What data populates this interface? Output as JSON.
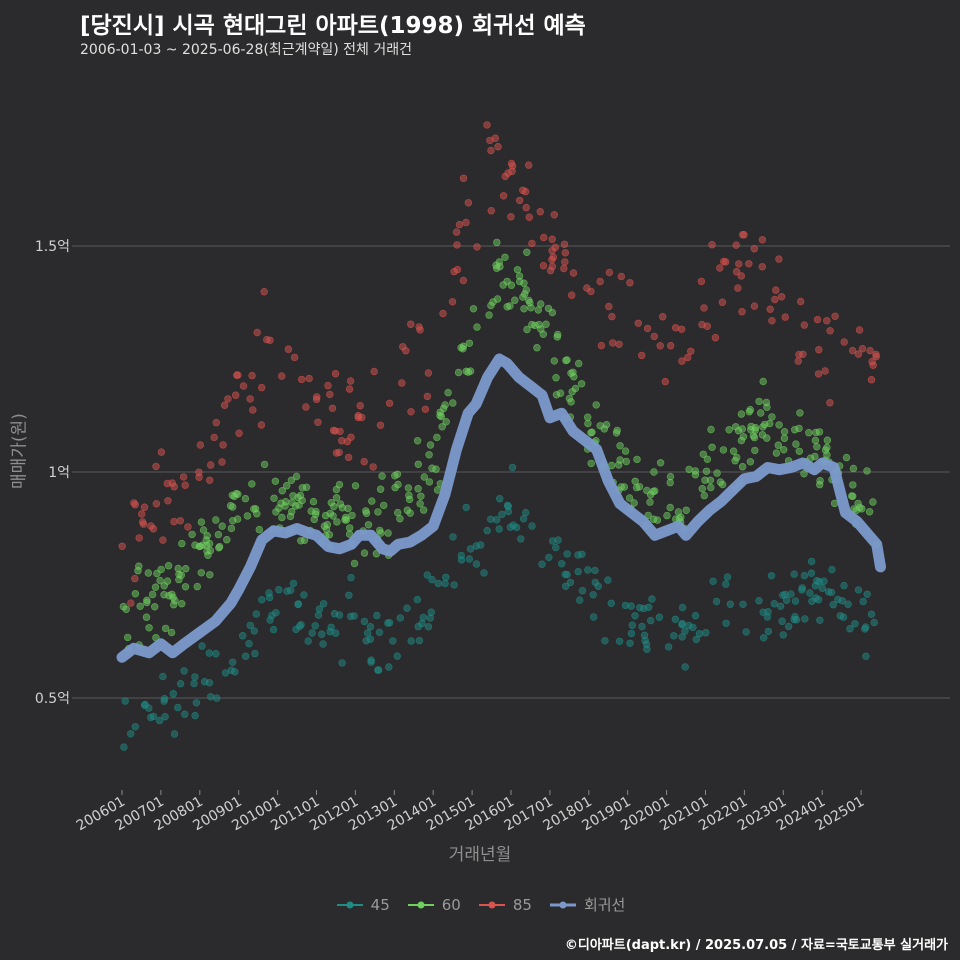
{
  "chart_data": {
    "type": "scatter",
    "title": "[당진시] 시곡 현대그린 아파트(1998) 회귀선 예측",
    "subtitle": "2006-01-03 ~ 2025-06-28(최근계약일) 전체 거래건",
    "xlabel": "거래년월",
    "ylabel": "매매가(원)",
    "x_ticks": [
      "200601",
      "200701",
      "200801",
      "200901",
      "201001",
      "201101",
      "201201",
      "201301",
      "201401",
      "201501",
      "201601",
      "201701",
      "201801",
      "201901",
      "202001",
      "202101",
      "202201",
      "202301",
      "202401",
      "202501"
    ],
    "y_ticks": [
      {
        "value": 0.5,
        "label": "0.5억"
      },
      {
        "value": 1.0,
        "label": "1억"
      },
      {
        "value": 1.5,
        "label": "1.5억"
      }
    ],
    "ylim": [
      0.3,
      1.9
    ],
    "xlim": [
      2005.7,
      2025.8
    ],
    "grid": "horizontal",
    "legend_position": "bottom",
    "series": [
      {
        "name": "45",
        "color": "#1f8c86",
        "band": [
          [
            2006.0,
            0.42
          ],
          [
            2006.5,
            0.44
          ],
          [
            2007.0,
            0.46
          ],
          [
            2007.5,
            0.49
          ],
          [
            2008.0,
            0.53
          ],
          [
            2008.5,
            0.56
          ],
          [
            2009.0,
            0.62
          ],
          [
            2009.5,
            0.67
          ],
          [
            2010.0,
            0.7
          ],
          [
            2010.5,
            0.7
          ],
          [
            2011.0,
            0.68
          ],
          [
            2011.5,
            0.66
          ],
          [
            2012.0,
            0.66
          ],
          [
            2012.5,
            0.65
          ],
          [
            2013.0,
            0.64
          ],
          [
            2013.5,
            0.66
          ],
          [
            2014.0,
            0.7
          ],
          [
            2014.5,
            0.78
          ],
          [
            2015.0,
            0.84
          ],
          [
            2015.5,
            0.9
          ],
          [
            2016.0,
            0.92
          ],
          [
            2016.5,
            0.9
          ],
          [
            2017.0,
            0.86
          ],
          [
            2017.5,
            0.8
          ],
          [
            2018.0,
            0.76
          ],
          [
            2018.5,
            0.72
          ],
          [
            2019.0,
            0.68
          ],
          [
            2019.5,
            0.66
          ],
          [
            2020.0,
            0.64
          ],
          [
            2020.5,
            0.65
          ],
          [
            2021.0,
            0.68
          ],
          [
            2021.5,
            0.7
          ],
          [
            2022.0,
            0.72
          ],
          [
            2022.5,
            0.72
          ],
          [
            2023.0,
            0.72
          ],
          [
            2023.5,
            0.73
          ],
          [
            2024.0,
            0.73
          ],
          [
            2024.5,
            0.7
          ],
          [
            2025.0,
            0.68
          ],
          [
            2025.4,
            0.66
          ]
        ]
      },
      {
        "name": "60",
        "color": "#6fcf5f",
        "band": [
          [
            2006.0,
            0.64
          ],
          [
            2006.5,
            0.68
          ],
          [
            2007.0,
            0.72
          ],
          [
            2007.5,
            0.77
          ],
          [
            2008.0,
            0.82
          ],
          [
            2008.5,
            0.88
          ],
          [
            2009.0,
            0.92
          ],
          [
            2009.5,
            0.95
          ],
          [
            2010.0,
            0.94
          ],
          [
            2010.5,
            0.92
          ],
          [
            2011.0,
            0.9
          ],
          [
            2011.5,
            0.89
          ],
          [
            2012.0,
            0.9
          ],
          [
            2012.5,
            0.9
          ],
          [
            2013.0,
            0.92
          ],
          [
            2013.5,
            0.96
          ],
          [
            2014.0,
            1.02
          ],
          [
            2014.5,
            1.15
          ],
          [
            2015.0,
            1.3
          ],
          [
            2015.5,
            1.4
          ],
          [
            2016.0,
            1.44
          ],
          [
            2016.5,
            1.38
          ],
          [
            2017.0,
            1.28
          ],
          [
            2017.5,
            1.18
          ],
          [
            2018.0,
            1.1
          ],
          [
            2018.5,
            1.04
          ],
          [
            2019.0,
            0.98
          ],
          [
            2019.5,
            0.94
          ],
          [
            2020.0,
            0.92
          ],
          [
            2020.5,
            0.94
          ],
          [
            2021.0,
            0.98
          ],
          [
            2021.5,
            1.02
          ],
          [
            2022.0,
            1.08
          ],
          [
            2022.5,
            1.1
          ],
          [
            2023.0,
            1.08
          ],
          [
            2023.5,
            1.06
          ],
          [
            2024.0,
            1.04
          ],
          [
            2024.5,
            0.98
          ],
          [
            2025.0,
            0.92
          ],
          [
            2025.4,
            0.88
          ]
        ]
      },
      {
        "name": "85",
        "color": "#d9534f",
        "band": [
          [
            2006.0,
            0.82
          ],
          [
            2006.5,
            0.86
          ],
          [
            2007.0,
            0.9
          ],
          [
            2007.5,
            0.95
          ],
          [
            2008.0,
            1.0
          ],
          [
            2008.5,
            1.08
          ],
          [
            2009.0,
            1.15
          ],
          [
            2009.5,
            1.22
          ],
          [
            2010.0,
            1.26
          ],
          [
            2010.5,
            1.24
          ],
          [
            2011.0,
            1.18
          ],
          [
            2011.5,
            1.12
          ],
          [
            2012.0,
            1.1
          ],
          [
            2012.5,
            1.12
          ],
          [
            2013.0,
            1.18
          ],
          [
            2013.5,
            1.26
          ],
          [
            2014.0,
            1.32
          ],
          [
            2014.5,
            1.44
          ],
          [
            2015.0,
            1.6
          ],
          [
            2015.5,
            1.7
          ],
          [
            2016.0,
            1.66
          ],
          [
            2016.5,
            1.56
          ],
          [
            2017.0,
            1.48
          ],
          [
            2017.5,
            1.42
          ],
          [
            2018.0,
            1.38
          ],
          [
            2018.5,
            1.34
          ],
          [
            2019.0,
            1.3
          ],
          [
            2019.5,
            1.26
          ],
          [
            2020.0,
            1.24
          ],
          [
            2020.5,
            1.28
          ],
          [
            2021.0,
            1.34
          ],
          [
            2021.5,
            1.4
          ],
          [
            2022.0,
            1.44
          ],
          [
            2022.5,
            1.42
          ],
          [
            2023.0,
            1.36
          ],
          [
            2023.5,
            1.3
          ],
          [
            2024.0,
            1.28
          ],
          [
            2024.5,
            1.26
          ],
          [
            2025.0,
            1.24
          ],
          [
            2025.4,
            1.2
          ]
        ]
      },
      {
        "name": "회귀선",
        "color": "#7b9acc",
        "type": "line",
        "points": [
          [
            2006.0,
            0.59
          ],
          [
            2006.3,
            0.61
          ],
          [
            2006.7,
            0.6
          ],
          [
            2007.0,
            0.62
          ],
          [
            2007.3,
            0.6
          ],
          [
            2007.6,
            0.62
          ],
          [
            2008.0,
            0.645
          ],
          [
            2008.4,
            0.67
          ],
          [
            2008.8,
            0.71
          ],
          [
            2009.0,
            0.74
          ],
          [
            2009.3,
            0.79
          ],
          [
            2009.6,
            0.85
          ],
          [
            2009.9,
            0.87
          ],
          [
            2010.2,
            0.865
          ],
          [
            2010.5,
            0.875
          ],
          [
            2010.8,
            0.865
          ],
          [
            2011.0,
            0.86
          ],
          [
            2011.3,
            0.835
          ],
          [
            2011.6,
            0.83
          ],
          [
            2011.9,
            0.84
          ],
          [
            2012.1,
            0.86
          ],
          [
            2012.4,
            0.86
          ],
          [
            2012.7,
            0.83
          ],
          [
            2012.9,
            0.825
          ],
          [
            2013.1,
            0.84
          ],
          [
            2013.4,
            0.845
          ],
          [
            2013.7,
            0.86
          ],
          [
            2014.0,
            0.88
          ],
          [
            2014.3,
            0.95
          ],
          [
            2014.6,
            1.05
          ],
          [
            2014.9,
            1.13
          ],
          [
            2015.1,
            1.15
          ],
          [
            2015.4,
            1.21
          ],
          [
            2015.7,
            1.25
          ],
          [
            2015.9,
            1.24
          ],
          [
            2016.2,
            1.21
          ],
          [
            2016.5,
            1.19
          ],
          [
            2016.8,
            1.17
          ],
          [
            2017.0,
            1.12
          ],
          [
            2017.3,
            1.13
          ],
          [
            2017.6,
            1.09
          ],
          [
            2017.9,
            1.07
          ],
          [
            2018.2,
            1.05
          ],
          [
            2018.5,
            0.98
          ],
          [
            2018.8,
            0.93
          ],
          [
            2019.1,
            0.91
          ],
          [
            2019.4,
            0.89
          ],
          [
            2019.7,
            0.86
          ],
          [
            2020.0,
            0.87
          ],
          [
            2020.3,
            0.88
          ],
          [
            2020.5,
            0.86
          ],
          [
            2020.8,
            0.89
          ],
          [
            2021.1,
            0.915
          ],
          [
            2021.4,
            0.935
          ],
          [
            2021.7,
            0.96
          ],
          [
            2022.0,
            0.985
          ],
          [
            2022.3,
            0.99
          ],
          [
            2022.6,
            1.01
          ],
          [
            2022.9,
            1.005
          ],
          [
            2023.2,
            1.01
          ],
          [
            2023.5,
            1.02
          ],
          [
            2023.8,
            1.005
          ],
          [
            2024.0,
            1.02
          ],
          [
            2024.3,
            1.01
          ],
          [
            2024.6,
            0.91
          ],
          [
            2024.9,
            0.89
          ],
          [
            2025.2,
            0.86
          ],
          [
            2025.4,
            0.84
          ],
          [
            2025.5,
            0.79
          ]
        ]
      }
    ],
    "legend": [
      "45",
      "60",
      "85",
      "회귀선"
    ]
  },
  "footer": "©디아파트(dapt.kr) / 2025.07.05 / 자료=국토교통부 실거래가"
}
